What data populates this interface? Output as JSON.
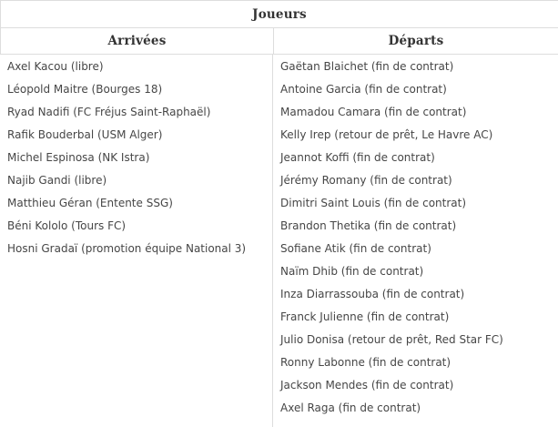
{
  "table": {
    "title": "Joueurs",
    "columns": {
      "arrivals": {
        "label": "Arrivées",
        "players": [
          "Axel Kacou (libre)",
          "Léopold Maitre (Bourges 18)",
          "Ryad Nadifi (FC Fréjus Saint-Raphaël)",
          "Rafik Bouderbal (USM Alger)",
          "Michel Espinosa (NK Istra)",
          "Najib Gandi (libre)",
          "Matthieu Géran (Entente SSG)",
          "Béni Kololo (Tours FC)",
          "Hosni Gradaï (promotion équipe National 3)"
        ]
      },
      "departures": {
        "label": "Départs",
        "players": [
          "Gaëtan Blaichet (fin de contrat)",
          "Antoine Garcia (fin de contrat)",
          "Mamadou Camara (fin de contrat)",
          "Kelly Irep (retour de prêt, Le Havre AC)",
          "Jeannot Koffi (fin de contrat)",
          "Jérémy Romany (fin de contrat)",
          "Dimitri Saint Louis (fin de contrat)",
          "Brandon Thetika (fin de contrat)",
          "Sofiane Atik (fin de contrat)",
          "Naïm Dhib (fin de contrat)",
          "Inza Diarrassouba (fin de contrat)",
          "Franck Julienne (fin de contrat)",
          "Julio Donisa (retour de prêt, Red Star FC)",
          "Ronny Labonne (fin de contrat)",
          "Jackson Mendes (fin de contrat)",
          "Axel Raga (fin de contrat)"
        ]
      }
    }
  },
  "colors": {
    "border": "#dddddd",
    "header_text": "#333333",
    "body_text": "#464646",
    "background": "#ffffff"
  }
}
